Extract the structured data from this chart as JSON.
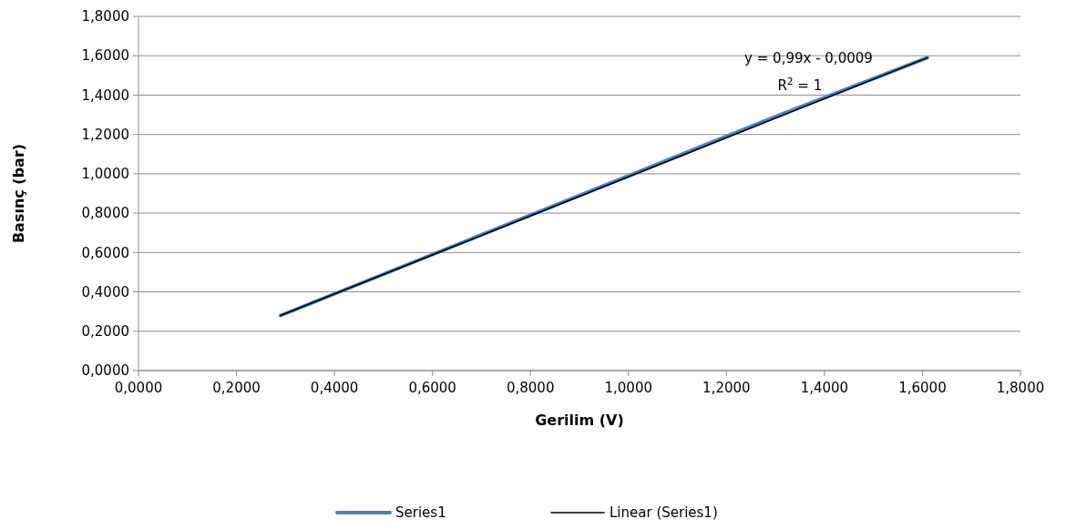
{
  "chart_data": {
    "type": "line",
    "xlabel": "Gerilim (V)",
    "ylabel": "Basınç (bar)",
    "xlim": [
      0,
      1.8
    ],
    "ylim": [
      0,
      1.8
    ],
    "xticks": [
      {
        "value": 0,
        "label": "0,0000"
      },
      {
        "value": 0.2,
        "label": "0,2000"
      },
      {
        "value": 0.4,
        "label": "0,4000"
      },
      {
        "value": 0.6,
        "label": "0,6000"
      },
      {
        "value": 0.8,
        "label": "0,8000"
      },
      {
        "value": 1.0,
        "label": "1,0000"
      },
      {
        "value": 1.2,
        "label": "1,2000"
      },
      {
        "value": 1.4,
        "label": "1,4000"
      },
      {
        "value": 1.6,
        "label": "1,6000"
      },
      {
        "value": 1.8,
        "label": "1,8000"
      }
    ],
    "yticks": [
      {
        "value": 0,
        "label": "0,0000"
      },
      {
        "value": 0.2,
        "label": "0,2000"
      },
      {
        "value": 0.4,
        "label": "0,4000"
      },
      {
        "value": 0.6,
        "label": "0,6000"
      },
      {
        "value": 0.8,
        "label": "0,8000"
      },
      {
        "value": 1.0,
        "label": "1,0000"
      },
      {
        "value": 1.2,
        "label": "1,2000"
      },
      {
        "value": 1.4,
        "label": "1,4000"
      },
      {
        "value": 1.6,
        "label": "1,6000"
      },
      {
        "value": 1.8,
        "label": "1,8000"
      }
    ],
    "grid": "y",
    "legend": "bottom",
    "marker": "none",
    "series": [
      {
        "name": "Series1",
        "color": "#4f81bd",
        "x": [
          0.29,
          0.6,
          1.0,
          1.3,
          1.61
        ],
        "values": [
          0.28,
          0.59,
          0.99,
          1.29,
          1.59
        ]
      },
      {
        "name": "Linear (Series1)",
        "color": "#000000",
        "x": [
          0.29,
          1.61
        ],
        "values": [
          0.28,
          1.59
        ]
      }
    ],
    "annotations": [
      "y = 0,99x - 0,0009",
      "R$^{2}$ = 1"
    ]
  }
}
